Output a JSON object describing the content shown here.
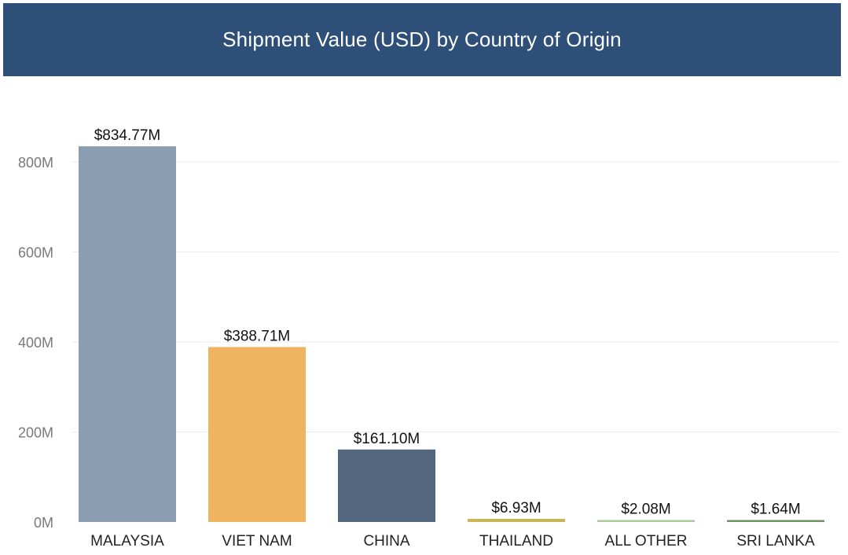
{
  "chart_data": {
    "type": "bar",
    "title": "Shipment Value (USD) by Country of Origin",
    "xlabel": "",
    "ylabel": "",
    "ylim": [
      0,
      800
    ],
    "grid": true,
    "legend": "none",
    "y_ticks": [
      {
        "value": 0,
        "label": "0M"
      },
      {
        "value": 200,
        "label": "200M"
      },
      {
        "value": 400,
        "label": "400M"
      },
      {
        "value": 600,
        "label": "600M"
      },
      {
        "value": 800,
        "label": "800M"
      }
    ],
    "categories": [
      "MALAYSIA",
      "VIET NAM",
      "CHINA",
      "THAILAND",
      "ALL OTHER",
      "SRI LANKA"
    ],
    "values": [
      834.77,
      388.71,
      161.1,
      6.93,
      2.08,
      1.64
    ],
    "data_labels": [
      "$834.77M",
      "$388.71M",
      "$161.10M",
      "$6.93M",
      "$2.08M",
      "$1.64M"
    ],
    "colors": [
      "#8a9db1",
      "#efb45f",
      "#53687f",
      "#c9b552",
      "#a8cd9a",
      "#6d9564"
    ],
    "header_color": "#2d4f78"
  }
}
